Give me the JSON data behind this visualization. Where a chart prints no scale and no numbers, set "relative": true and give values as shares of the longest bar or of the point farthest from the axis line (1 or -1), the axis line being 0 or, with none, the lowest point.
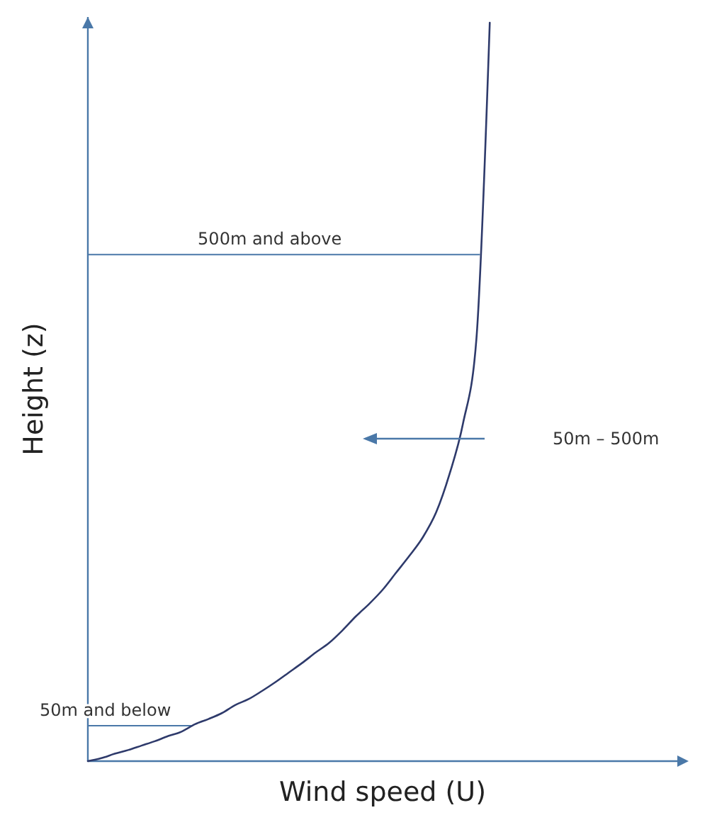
{
  "chart_data": {
    "type": "line",
    "relative": true,
    "xlabel": "Wind speed (U)",
    "ylabel": "Height (z)",
    "grid": false,
    "marker": "none",
    "line_style": "solid",
    "categories": [
      null,
      null,
      null,
      null,
      null,
      null,
      null,
      null,
      null,
      null,
      null,
      null,
      null,
      null,
      null,
      null,
      null,
      null,
      null,
      null,
      null,
      null,
      null,
      null,
      null,
      null,
      null,
      null,
      null,
      null,
      null,
      null,
      null,
      null,
      null,
      null,
      null,
      null,
      null,
      null,
      null,
      null,
      null,
      null,
      null
    ],
    "series": [
      {
        "color": "#2e3a6b",
        "values": [
          0,
          0.004,
          0.01,
          0.015,
          0.021,
          0.027,
          0.034,
          0.04,
          0.05,
          0.057,
          0.065,
          0.076,
          0.084,
          0.095,
          0.107,
          0.12,
          0.133,
          0.147,
          0.16,
          0.177,
          0.196,
          0.213,
          0.232,
          0.255,
          0.278,
          0.303,
          0.337,
          0.389,
          0.457,
          0.571,
          1,
          null,
          null,
          null,
          null,
          null,
          null,
          null,
          null,
          null,
          null,
          null,
          null,
          null,
          null
        ]
      }
    ],
    "ref_lines": [
      {
        "axis": "y",
        "value": 0.048,
        "label": "50m and below",
        "color": "#4a78a8"
      },
      {
        "axis": "y",
        "value": 0.686,
        "label": "500m and above",
        "color": "#4a78a8"
      }
    ],
    "annotations": [
      "50m – 500m"
    ]
  }
}
